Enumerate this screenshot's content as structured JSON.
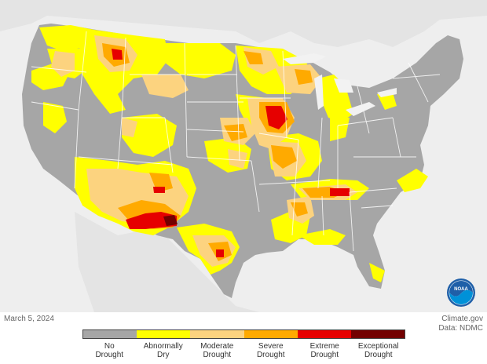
{
  "date_text": "March 5, 2024",
  "credit": {
    "line1": "Climate.gov",
    "line2": "Data: NDMC"
  },
  "logo_text": "NOAA",
  "legend": [
    {
      "label": "No\nDrought",
      "color": "#a6a6a6"
    },
    {
      "label": "Abnormally\nDry",
      "color": "#ffff00"
    },
    {
      "label": "Moderate\nDrought",
      "color": "#fcd37f"
    },
    {
      "label": "Severe\nDrought",
      "color": "#ffaa00"
    },
    {
      "label": "Extreme\nDrought",
      "color": "#e60000"
    },
    {
      "label": "Exceptional\nDrought",
      "color": "#730000"
    }
  ],
  "colors": {
    "background": "#f2f2f2",
    "ocean": "#f2f2f2",
    "land_outside": "#e6e6e6",
    "state_border": "#ffffff"
  }
}
